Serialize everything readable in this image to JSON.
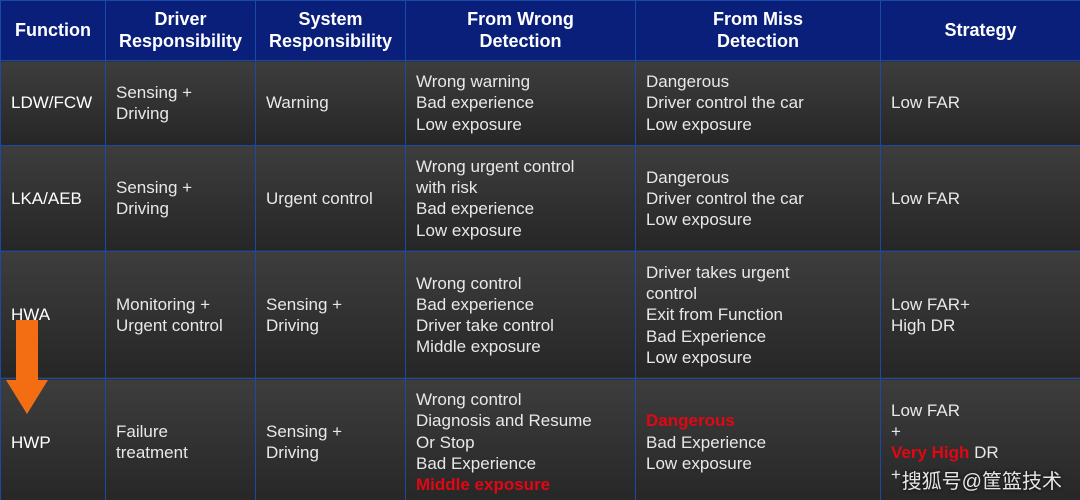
{
  "table": {
    "columns": [
      {
        "key": "function",
        "label": "Function"
      },
      {
        "key": "driver",
        "label": "Driver\nResponsibility"
      },
      {
        "key": "system",
        "label": "System\nResponsibility"
      },
      {
        "key": "wrong",
        "label": "From Wrong\nDetection"
      },
      {
        "key": "miss",
        "label": "From Miss\nDetection"
      },
      {
        "key": "strategy",
        "label": "Strategy"
      }
    ],
    "rows": [
      {
        "function": "LDW/FCW",
        "driver": "Sensing +\nDriving",
        "system": "Warning",
        "wrong": [
          {
            "t": "Wrong warning\nBad experience\nLow exposure"
          }
        ],
        "miss": [
          {
            "t": "Dangerous\nDriver control the car\nLow exposure"
          }
        ],
        "strategy": [
          {
            "t": "Low FAR"
          }
        ]
      },
      {
        "function": "LKA/AEB",
        "driver": "Sensing +\nDriving",
        "system": "Urgent control",
        "wrong": [
          {
            "t": "Wrong urgent control\nwith risk\nBad experience\nLow exposure"
          }
        ],
        "miss": [
          {
            "t": "Dangerous\nDriver control the car\nLow exposure"
          }
        ],
        "strategy": [
          {
            "t": "Low FAR"
          }
        ]
      },
      {
        "function": "HWA",
        "driver": "Monitoring +\nUrgent control",
        "system": "Sensing +\nDriving",
        "wrong": [
          {
            "t": "Wrong control\nBad experience\nDriver take control\nMiddle exposure"
          }
        ],
        "miss": [
          {
            "t": "Driver takes urgent\ncontrol\nExit from Function\nBad Experience\nLow exposure"
          }
        ],
        "strategy": [
          {
            "t": "Low FAR+\nHigh DR"
          }
        ]
      },
      {
        "function": "HWP",
        "driver": "Failure\ntreatment",
        "system": "Sensing +\nDriving",
        "wrong": [
          {
            "t": "Wrong control\nDiagnosis and Resume\nOr Stop\nBad Experience"
          },
          {
            "t": "\nMiddle exposure",
            "red": true
          }
        ],
        "miss": [
          {
            "t": "Dangerous",
            "red": true
          },
          {
            "t": "\nBad Experience\nLow exposure"
          }
        ],
        "strategy": [
          {
            "t": "Low FAR\n+"
          },
          {
            "t": "\nVery High ",
            "red": true
          },
          {
            "t": "DR\n+"
          }
        ]
      }
    ],
    "header_bg": "#0a1f7a",
    "header_text": "#ffffff",
    "border_color": "#1a4aa8",
    "row_bg_gradient": [
      "#3d3d3d",
      "#262626"
    ],
    "cell_text": "#e8e8e8",
    "accent_red": "#e30613",
    "font_size_header": 18,
    "font_size_cell": 17
  },
  "arrow": {
    "color": "#f36e13"
  },
  "watermark": "搜狐号@筐篮技术"
}
